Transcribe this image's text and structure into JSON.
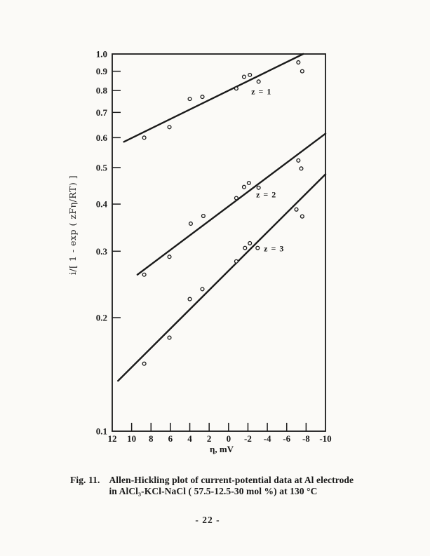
{
  "colors": {
    "ink": "#1a1a1a",
    "paper": "#fbfaf7"
  },
  "figure": {
    "fig_label": "Fig. 11.",
    "caption_line1": "Allen-Hickling plot of current-potential data at Al electrode",
    "caption_line2": "in AlCl₃-KCl-NaCl ( 57.5-12.5-30 mol %) at 130 °C",
    "page_number": "- 22 -"
  },
  "chart_data": {
    "type": "scatter",
    "title": "",
    "xlabel": "η, mV",
    "ylabel": "i/[ 1 - exp ( zFη/RT) ]",
    "grid": false,
    "legend_position": "inline-labels",
    "x_axis": {
      "min": -10,
      "max": 12,
      "reversed": true,
      "unit": "mV",
      "tick_values": [
        12,
        10,
        8,
        6,
        4,
        2,
        0,
        -2,
        -4,
        -6,
        -8,
        -10
      ],
      "tick_labels": [
        "12",
        "10",
        "8",
        "6",
        "4",
        "2",
        "0",
        "-2",
        "-4",
        "-6",
        "-8",
        "-10"
      ]
    },
    "y_axis": {
      "min": 0.1,
      "max": 1.0,
      "scale": "log",
      "tick_values": [
        1.0,
        0.9,
        0.8,
        0.7,
        0.6,
        0.5,
        0.4,
        0.3,
        0.2,
        0.1
      ],
      "tick_labels": [
        "1.0",
        "0.9",
        "0.8",
        "0.7",
        "0.6",
        "0.5",
        "0.4",
        "0.3",
        "0.2",
        "0.1"
      ]
    },
    "series": [
      {
        "id": "z1",
        "name": "z = 1",
        "marker": "open-circle",
        "label_pos": [
          -3.4,
          0.795
        ],
        "points": [
          [
            8.7,
            0.6
          ],
          [
            6.1,
            0.64
          ],
          [
            4.0,
            0.76
          ],
          [
            2.7,
            0.77
          ],
          [
            -0.8,
            0.81
          ],
          [
            -1.6,
            0.87
          ],
          [
            -2.2,
            0.88
          ],
          [
            -3.1,
            0.845
          ],
          [
            -7.2,
            0.95
          ],
          [
            -7.6,
            0.9
          ]
        ],
        "fit_line": [
          [
            10.8,
            0.585
          ],
          [
            -7.7,
            1.0
          ]
        ]
      },
      {
        "id": "z2",
        "name": "z = 2",
        "marker": "open-circle",
        "label_pos": [
          -3.9,
          0.424
        ],
        "points": [
          [
            8.7,
            0.26
          ],
          [
            6.1,
            0.29
          ],
          [
            3.9,
            0.355
          ],
          [
            2.6,
            0.372
          ],
          [
            -0.8,
            0.415
          ],
          [
            -1.6,
            0.444
          ],
          [
            -2.1,
            0.455
          ],
          [
            -3.1,
            0.442
          ],
          [
            -7.2,
            0.522
          ],
          [
            -7.5,
            0.497
          ]
        ],
        "fit_line": [
          [
            9.4,
            0.26
          ],
          [
            -10,
            0.615
          ]
        ]
      },
      {
        "id": "z3",
        "name": "z = 3",
        "marker": "open-circle",
        "label_pos": [
          -4.7,
          0.305
        ],
        "points": [
          [
            8.7,
            0.151
          ],
          [
            6.1,
            0.177
          ],
          [
            4.0,
            0.224
          ],
          [
            2.7,
            0.238
          ],
          [
            -0.8,
            0.282
          ],
          [
            -1.7,
            0.306
          ],
          [
            -2.2,
            0.315
          ],
          [
            -3.0,
            0.306
          ],
          [
            -7.0,
            0.387
          ],
          [
            -7.6,
            0.371
          ]
        ],
        "fit_line": [
          [
            11.4,
            0.136
          ],
          [
            -10,
            0.48
          ]
        ]
      }
    ]
  }
}
